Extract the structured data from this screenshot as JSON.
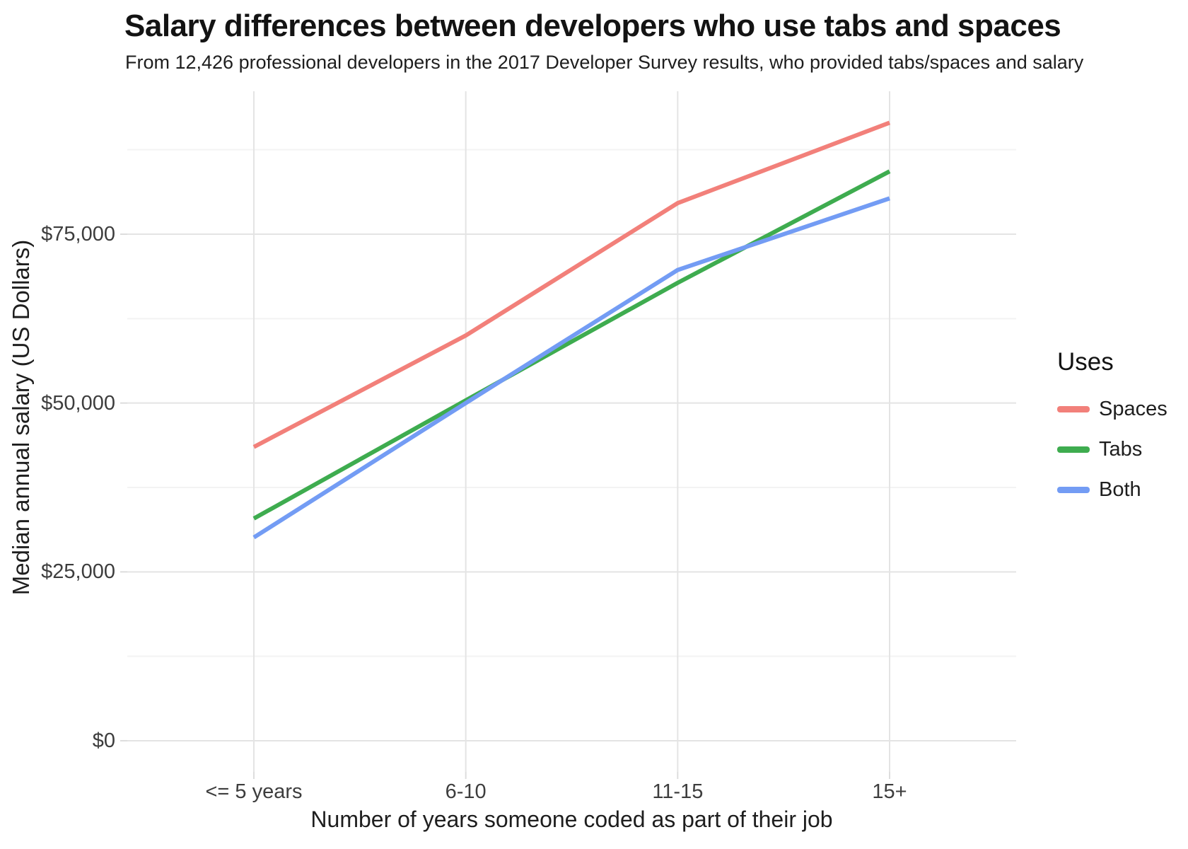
{
  "header": {
    "title": "Salary differences between developers who use tabs and spaces",
    "subtitle": "From 12,426 professional developers in the 2017 Developer Survey results, who provided tabs/spaces and salary"
  },
  "chart_data": {
    "type": "line",
    "categories": [
      "<= 5 years",
      "6-10",
      "11-15",
      "15+"
    ],
    "series": [
      {
        "name": "Spaces",
        "color": "#F2807A",
        "values": [
          43500,
          60000,
          79600,
          91500
        ]
      },
      {
        "name": "Tabs",
        "color": "#3EAC4F",
        "values": [
          32900,
          50400,
          67800,
          84300
        ]
      },
      {
        "name": "Both",
        "color": "#739CF4",
        "values": [
          30100,
          50000,
          69700,
          80300
        ]
      }
    ],
    "xlabel": "Number of years someone coded as part of their job",
    "ylabel": "Median annual salary (US Dollars)",
    "y_ticks": [
      {
        "value": 0,
        "label": "$0"
      },
      {
        "value": 25000,
        "label": "$25,000"
      },
      {
        "value": 50000,
        "label": "$50,000"
      },
      {
        "value": 75000,
        "label": "$75,000"
      }
    ],
    "y_minor_ticks": [
      12500,
      37500,
      62500,
      87500
    ],
    "ylim": [
      0,
      96000
    ],
    "grid": "major+minor",
    "legend": {
      "title": "Uses",
      "position": "right"
    },
    "colors": {
      "grid_major": "#E4E4E4",
      "grid_minor": "#F3F3F3",
      "tick_mark": "#DDDDDD"
    }
  }
}
